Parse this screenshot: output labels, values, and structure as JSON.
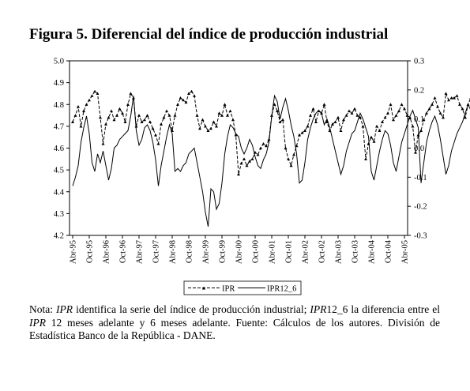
{
  "figure": {
    "title": "Figura 5. Diferencial del índice de producción industrial"
  },
  "chart_data": {
    "type": "line",
    "title": "",
    "xlabel": "",
    "ylabel": "",
    "left_axis": {
      "ylim": [
        4.2,
        5.0
      ],
      "ticks": [
        "4.2",
        "4.3",
        "4.4",
        "4.5",
        "4.6",
        "4.7",
        "4.8",
        "4.9",
        "5.0"
      ]
    },
    "right_axis": {
      "ylim": [
        -0.3,
        0.3
      ],
      "ticks": [
        "-0.3",
        "-0.2",
        "-0.1",
        "0.0",
        "0.1",
        "0.2",
        "0.3"
      ]
    },
    "x_tick_labels": [
      "Abr-95",
      "Oct-95",
      "Abr-96",
      "Oct-96",
      "Abr-97",
      "Oct-97",
      "Abr-98",
      "Oct-98",
      "Abr-99",
      "Oct-99",
      "Abr-00",
      "Oct-00",
      "Abr-01",
      "Oct-01",
      "Abr-02",
      "Oct-02",
      "Abr-03",
      "Oct-03",
      "Abr-04",
      "Oct-04",
      "Abr-05"
    ],
    "legend": {
      "position": "bottom",
      "entries": [
        "IPR",
        "IPR12_6"
      ]
    },
    "series": [
      {
        "name": "IPR",
        "axis": "left",
        "style": "dashed-triangle",
        "color": "#000000",
        "x_start": "Abr-95",
        "values": [
          4.72,
          4.75,
          4.79,
          4.7,
          4.77,
          4.8,
          4.82,
          4.84,
          4.86,
          4.85,
          4.74,
          4.62,
          4.71,
          4.74,
          4.77,
          4.73,
          4.75,
          4.78,
          4.76,
          4.72,
          4.8,
          4.85,
          4.83,
          4.7,
          4.75,
          4.72,
          4.73,
          4.75,
          4.72,
          4.69,
          4.66,
          4.62,
          4.71,
          4.74,
          4.77,
          4.75,
          4.68,
          4.75,
          4.8,
          4.83,
          4.82,
          4.81,
          4.85,
          4.86,
          4.84,
          4.75,
          4.69,
          4.73,
          4.7,
          4.68,
          4.69,
          4.72,
          4.7,
          4.76,
          4.75,
          4.8,
          4.75,
          4.77,
          4.73,
          4.66,
          4.48,
          4.53,
          4.55,
          4.52,
          4.54,
          4.55,
          4.58,
          4.57,
          4.6,
          4.62,
          4.61,
          4.64,
          4.75,
          4.8,
          4.77,
          4.72,
          4.73,
          4.6,
          4.55,
          4.52,
          4.57,
          4.61,
          4.66,
          4.67,
          4.68,
          4.7,
          4.75,
          4.78,
          4.72,
          4.77,
          4.76,
          4.8,
          4.72,
          4.68,
          4.71,
          4.72,
          4.74,
          4.68,
          4.73,
          4.75,
          4.77,
          4.76,
          4.78,
          4.75,
          4.74,
          4.7,
          4.55,
          4.62,
          4.65,
          4.63,
          4.7,
          4.68,
          4.72,
          4.74,
          4.76,
          4.8,
          4.73,
          4.75,
          4.77,
          4.8,
          4.78,
          4.75,
          4.74,
          4.7,
          4.58,
          4.66,
          4.68,
          4.73,
          4.76,
          4.78,
          4.8,
          4.83,
          4.79,
          4.76,
          4.74,
          4.85,
          4.82,
          4.83,
          4.83,
          4.84,
          4.8,
          4.78,
          4.74,
          4.8,
          4.83,
          4.82,
          4.85,
          4.83,
          4.81,
          4.82,
          4.84,
          4.85,
          4.85,
          4.88,
          4.87,
          4.8,
          4.68,
          4.72,
          4.75,
          4.79,
          4.77,
          4.82,
          4.83,
          4.8
        ]
      },
      {
        "name": "IPR12_6",
        "axis": "right",
        "style": "solid",
        "color": "#000000",
        "x_start": "Abr-95",
        "values": [
          -0.13,
          -0.1,
          -0.06,
          0.02,
          0.07,
          0.11,
          0.05,
          -0.05,
          -0.08,
          -0.02,
          -0.05,
          -0.01,
          -0.06,
          -0.11,
          -0.07,
          0.0,
          0.01,
          0.03,
          0.04,
          0.05,
          0.06,
          0.11,
          0.18,
          0.06,
          0.01,
          0.03,
          0.07,
          0.08,
          0.06,
          0.02,
          -0.04,
          -0.13,
          -0.06,
          -0.01,
          0.04,
          0.08,
          0.05,
          -0.08,
          -0.07,
          -0.08,
          -0.06,
          -0.05,
          -0.02,
          -0.01,
          0.0,
          -0.05,
          -0.1,
          -0.15,
          -0.22,
          -0.27,
          -0.14,
          -0.15,
          -0.21,
          -0.19,
          -0.12,
          -0.02,
          0.04,
          0.08,
          0.07,
          0.05,
          0.04,
          0.0,
          -0.02,
          0.0,
          0.03,
          0.01,
          -0.03,
          -0.06,
          -0.07,
          -0.04,
          -0.02,
          0.02,
          0.11,
          0.18,
          0.16,
          0.1,
          0.14,
          0.17,
          0.13,
          0.08,
          0.04,
          -0.02,
          -0.12,
          -0.11,
          -0.05,
          0.03,
          0.07,
          0.1,
          0.12,
          0.13,
          0.12,
          0.08,
          0.1,
          0.07,
          0.03,
          -0.01,
          -0.05,
          -0.09,
          -0.06,
          -0.01,
          0.02,
          0.05,
          0.06,
          0.09,
          0.12,
          0.1,
          0.07,
          0.04,
          -0.08,
          -0.11,
          -0.06,
          -0.01,
          0.03,
          0.06,
          0.05,
          0.01,
          -0.05,
          -0.08,
          -0.03,
          0.02,
          0.05,
          0.08,
          0.11,
          0.13,
          0.1,
          0.07,
          -0.12,
          -0.05,
          0.02,
          0.06,
          0.09,
          0.11,
          0.08,
          0.03,
          -0.03,
          -0.09,
          -0.06,
          -0.01,
          0.02,
          0.05,
          0.07,
          0.09,
          0.12,
          0.15,
          0.13,
          0.1,
          0.05,
          0.01,
          -0.08,
          -0.15,
          -0.09,
          -0.05,
          -0.06,
          -0.02,
          0.0,
          -0.08
        ]
      }
    ]
  },
  "note": {
    "prefix": "Nota: ",
    "ipr": "IPR",
    "text1": " identifica la serie del índice de producción industrial; ",
    "ipr12": "IPR",
    "text2": "12_6 la diferencia entre el ",
    "ipr_b": "IPR",
    "text3": " 12 meses adelante y 6 meses adelante. Fuente: Cálculos de los autores. División de Estadística Banco de la República - DANE."
  }
}
